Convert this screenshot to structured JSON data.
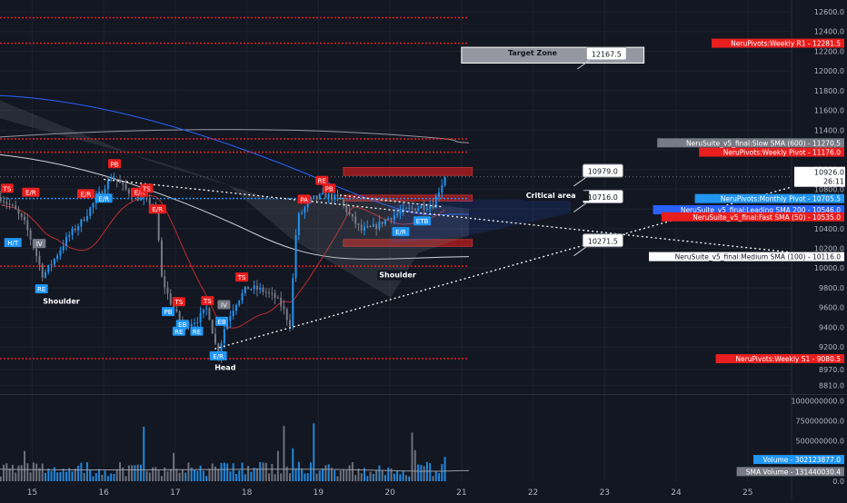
{
  "chart_data": {
    "type": "candlestick",
    "symbol_hint": "",
    "price_axis": {
      "ylim": [
        8740,
        12720
      ],
      "ticks": [
        "12600.0",
        "12400.0",
        "12200.0",
        "12000.0",
        "11800.0",
        "11600.0",
        "11400.0",
        "11200.0",
        "11000.0",
        "10800.0",
        "10600.0",
        "10400.0",
        "10200.0",
        "10000.0",
        "9800.0",
        "9600.0",
        "9400.0",
        "9200.0",
        "8970.0",
        "8810.0"
      ],
      "tick_values": [
        12600,
        12400,
        12200,
        12000,
        11800,
        11600,
        11400,
        11200,
        11000,
        10800,
        10600,
        10400,
        10200,
        10000,
        9800,
        9600,
        9400,
        9200,
        8970,
        8810
      ]
    },
    "volume_axis": {
      "ylim": [
        0,
        1050000000
      ],
      "ticks": [
        "1000000000.0",
        "750000000.0",
        "500000000.0",
        "250000000.0",
        "0.0"
      ],
      "tick_values": [
        1000000000,
        750000000,
        500000000,
        250000000,
        0
      ]
    },
    "time_axis": {
      "xlim": [
        14.55,
        25.6
      ],
      "ticks": [
        "15",
        "16",
        "17",
        "18",
        "19",
        "20",
        "21",
        "22",
        "23",
        "24",
        "25"
      ],
      "tick_values": [
        15,
        16,
        17,
        18,
        19,
        20,
        21,
        22,
        23,
        24,
        25
      ]
    },
    "last_price": {
      "value": 10926.0,
      "label": "10926.0",
      "countdown": "26:11"
    },
    "price_tags": [
      {
        "label": "NeruPivots:Weekly R1 - 12281.5",
        "value": 12281.5,
        "color": "#e91e1e"
      },
      {
        "label": "NeruSuite_v5_final:Slow SMA (600) - 11270.5",
        "value": 11270.5,
        "color": "#787b86"
      },
      {
        "label": "NeruPivots:Weekly Pivot - 11176.0",
        "value": 11176.0,
        "color": "#e91e1e"
      },
      {
        "label": "NeruPivots:Monthly Pivot - 10705.5",
        "value": 10705.5,
        "color": "#2196f3"
      },
      {
        "label": "NeruSuite_v5_final:Leading SMA 200 - 10546.0",
        "value": 10546.0,
        "color": "#2962ff"
      },
      {
        "label": "NeruSuite_v5_final:Fast SMA (50) - 10535.0",
        "value": 10535.0,
        "color": "#e91e1e"
      },
      {
        "label": "NeruSuite_v5_final:Medium SMA (100) - 10116.0",
        "value": 10116.0,
        "color": "#ffffff"
      },
      {
        "label": "NeruPivots:Weekly S1 - 9080.5",
        "value": 9080.5,
        "color": "#e91e1e"
      }
    ],
    "volume_tags": [
      {
        "label": "Volume - 302123877.0",
        "value": 302123877,
        "color": "#2196f3"
      },
      {
        "label": "SMA Volume - 131440030.4",
        "value": 131440030.4,
        "color": "#787b86"
      }
    ],
    "annotations": {
      "callouts": [
        {
          "label": "12167.5",
          "x": 23.0,
          "y": 12167.5
        },
        {
          "label": "10979.0",
          "x": 22.95,
          "y": 10979.0
        },
        {
          "label": "10716.0",
          "x": 22.95,
          "y": 10716.0
        },
        {
          "label": "10271.5",
          "x": 22.95,
          "y": 10271.5
        }
      ],
      "text_labels": [
        {
          "label": "Target Zone",
          "x": 21.65,
          "y": 12160
        },
        {
          "label": "Critical area",
          "x": 21.9,
          "y": 10710
        },
        {
          "label": "Shoulder",
          "x": 15.15,
          "y": 9640
        },
        {
          "label": "Head",
          "x": 17.55,
          "y": 8965
        },
        {
          "label": "Shoulder",
          "x": 19.85,
          "y": 9905
        }
      ],
      "zones": [
        {
          "name": "",
          "x": [
            19.35,
            21.15
          ],
          "y": [
            10940,
            11020
          ]
        },
        {
          "name": "",
          "x": [
            19.35,
            21.15
          ],
          "y": [
            10680,
            10740
          ]
        },
        {
          "name": "",
          "x": [
            19.35,
            21.15
          ],
          "y": [
            10220,
            10290
          ]
        }
      ],
      "target_box": {
        "x": [
          21.0,
          23.55
        ],
        "y": [
          12080,
          12240
        ]
      },
      "signal_labels": [
        {
          "label": "TS",
          "x": 14.65,
          "y": 10800,
          "color": "#e91e1e"
        },
        {
          "label": "E/R",
          "x": 14.98,
          "y": 10760,
          "color": "#e91e1e"
        },
        {
          "label": "H/T",
          "x": 14.73,
          "y": 10250,
          "color": "#2196f3"
        },
        {
          "label": "IV",
          "x": 15.1,
          "y": 10240,
          "color": "#787b86"
        },
        {
          "label": "RE",
          "x": 15.13,
          "y": 9780,
          "color": "#2196f3"
        },
        {
          "label": "E/R",
          "x": 15.75,
          "y": 10745,
          "color": "#e91e1e"
        },
        {
          "label": "E/R",
          "x": 16.0,
          "y": 10700,
          "color": "#2196f3"
        },
        {
          "label": "PB",
          "x": 16.15,
          "y": 11050,
          "color": "#e91e1e"
        },
        {
          "label": "E/R",
          "x": 16.75,
          "y": 10590,
          "color": "#e91e1e"
        },
        {
          "label": "E/R",
          "x": 16.5,
          "y": 10760,
          "color": "#e91e1e"
        },
        {
          "label": "TS",
          "x": 16.6,
          "y": 10800,
          "color": "#e91e1e"
        },
        {
          "label": "PB",
          "x": 16.9,
          "y": 9550,
          "color": "#2196f3"
        },
        {
          "label": "TS",
          "x": 17.05,
          "y": 9650,
          "color": "#e91e1e"
        },
        {
          "label": "RE",
          "x": 17.05,
          "y": 9350,
          "color": "#2196f3"
        },
        {
          "label": "RE",
          "x": 17.3,
          "y": 9350,
          "color": "#2196f3"
        },
        {
          "label": "EB",
          "x": 17.1,
          "y": 9420,
          "color": "#2196f3"
        },
        {
          "label": "TS",
          "x": 17.45,
          "y": 9660,
          "color": "#e91e1e"
        },
        {
          "label": "IV",
          "x": 17.68,
          "y": 9620,
          "color": "#787b86"
        },
        {
          "label": "TS",
          "x": 17.93,
          "y": 9900,
          "color": "#e91e1e"
        },
        {
          "label": "EB",
          "x": 17.65,
          "y": 9450,
          "color": "#2196f3"
        },
        {
          "label": "E/R",
          "x": 17.6,
          "y": 9100,
          "color": "#2196f3"
        },
        {
          "label": "PA",
          "x": 18.8,
          "y": 10690,
          "color": "#e91e1e"
        },
        {
          "label": "RE",
          "x": 19.05,
          "y": 10880,
          "color": "#e91e1e"
        },
        {
          "label": "PB",
          "x": 19.15,
          "y": 10800,
          "color": "#e91e1e"
        },
        {
          "label": "E/R",
          "x": 20.15,
          "y": 10360,
          "color": "#2196f3"
        },
        {
          "label": "ETB",
          "x": 20.45,
          "y": 10470,
          "color": "#2196f3"
        }
      ]
    }
  }
}
